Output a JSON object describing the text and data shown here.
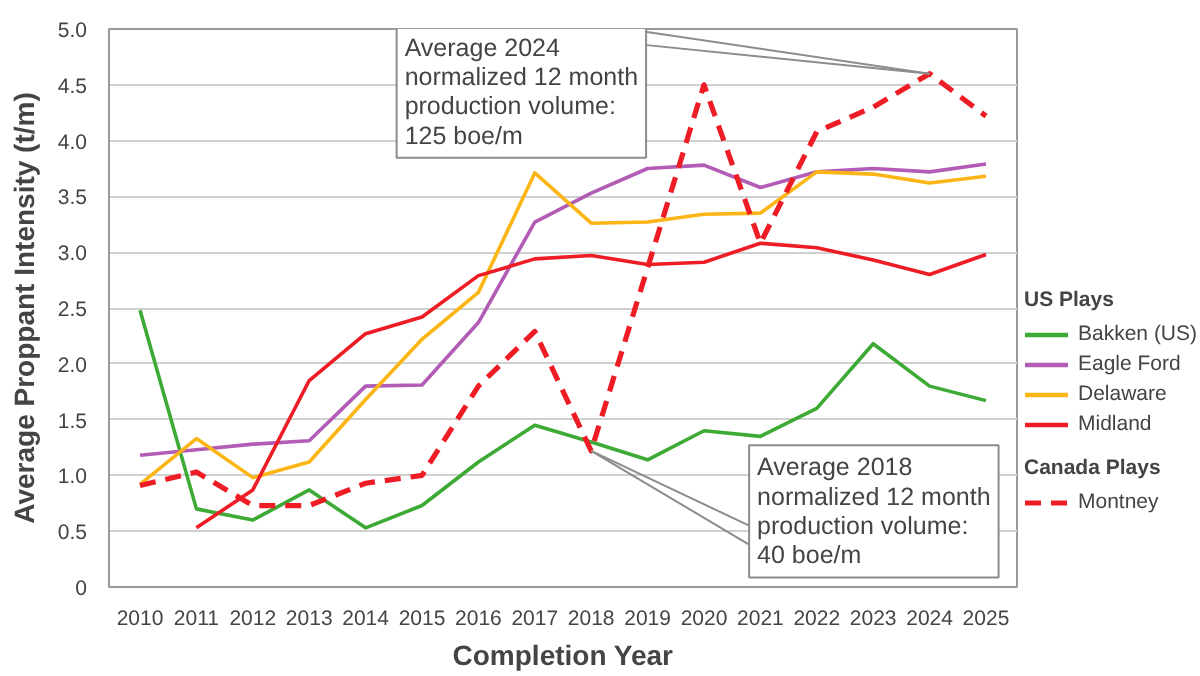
{
  "chart_data": {
    "type": "line",
    "xlabel": "Completion Year",
    "ylabel": "Average Proppant Intensity (t/m)",
    "x": [
      2010,
      2011,
      2012,
      2013,
      2014,
      2015,
      2016,
      2017,
      2018,
      2019,
      2020,
      2021,
      2022,
      2023,
      2024,
      2025
    ],
    "xlim": [
      2009.45,
      2025.55
    ],
    "xticks": [
      2010,
      2011,
      2012,
      2013,
      2014,
      2015,
      2016,
      2017,
      2018,
      2019,
      2020,
      2021,
      2022,
      2023,
      2024,
      2025
    ],
    "ylim": [
      0,
      5
    ],
    "yticks": [
      0,
      0.5,
      {
        "value": 1,
        "label": "1.0"
      },
      1.5,
      {
        "value": 2,
        "label": "2.0"
      },
      2.5,
      {
        "value": 3,
        "label": "3.0"
      },
      3.5,
      {
        "value": 4,
        "label": "4.0"
      },
      4.5,
      {
        "value": 5,
        "label": "5.0"
      }
    ],
    "grid": "y",
    "legend": "right",
    "legend_title": "US Plays",
    "series": [
      {
        "name": "Bakken (US)",
        "color": "#3daa35",
        "values": [
          2.48,
          0.7,
          0.6,
          0.87,
          0.53,
          0.73,
          1.12,
          1.45,
          1.3,
          1.14,
          1.4,
          1.35,
          1.6,
          2.18,
          1.8,
          1.67
        ]
      },
      {
        "name": "Eagle Ford",
        "color": "#b25cb5",
        "values": [
          1.18,
          1.23,
          1.28,
          1.31,
          1.8,
          1.81,
          2.37,
          3.27,
          3.53,
          3.75,
          3.78,
          3.58,
          3.72,
          3.75,
          3.72,
          3.79
        ]
      },
      {
        "name": "Delaware",
        "color": "#fbb515",
        "values": [
          0.92,
          1.33,
          0.98,
          1.12,
          1.68,
          2.22,
          2.64,
          3.71,
          3.26,
          3.27,
          3.34,
          3.35,
          3.72,
          3.7,
          3.62,
          3.68
        ]
      },
      {
        "name": "Midland",
        "color": "#ee1c24",
        "values": [
          null,
          0.53,
          0.87,
          1.85,
          2.27,
          2.42,
          2.79,
          2.94,
          2.97,
          2.89,
          2.91,
          3.08,
          3.04,
          2.93,
          2.8,
          2.98
        ]
      },
      {
        "name": "Montney",
        "color": "#ee1c24",
        "line_style": "dashed",
        "values": [
          0.91,
          1.03,
          0.73,
          0.73,
          0.93,
          1.0,
          1.8,
          2.29,
          1.22,
          2.86,
          4.5,
          3.08,
          4.08,
          4.3,
          4.6,
          4.22
        ]
      }
    ],
    "annotations": [
      {
        "text": "Average 2024\nnormalized 12 month\nproduction volume:\n125 boe/m",
        "x": 2024,
        "y": 4.6
      },
      {
        "text": "Average 2018\nnormalized 12 month\nproduction volume:\n40 boe/m",
        "x": 2018,
        "y": 1.22
      },
      "Canada Plays"
    ]
  }
}
